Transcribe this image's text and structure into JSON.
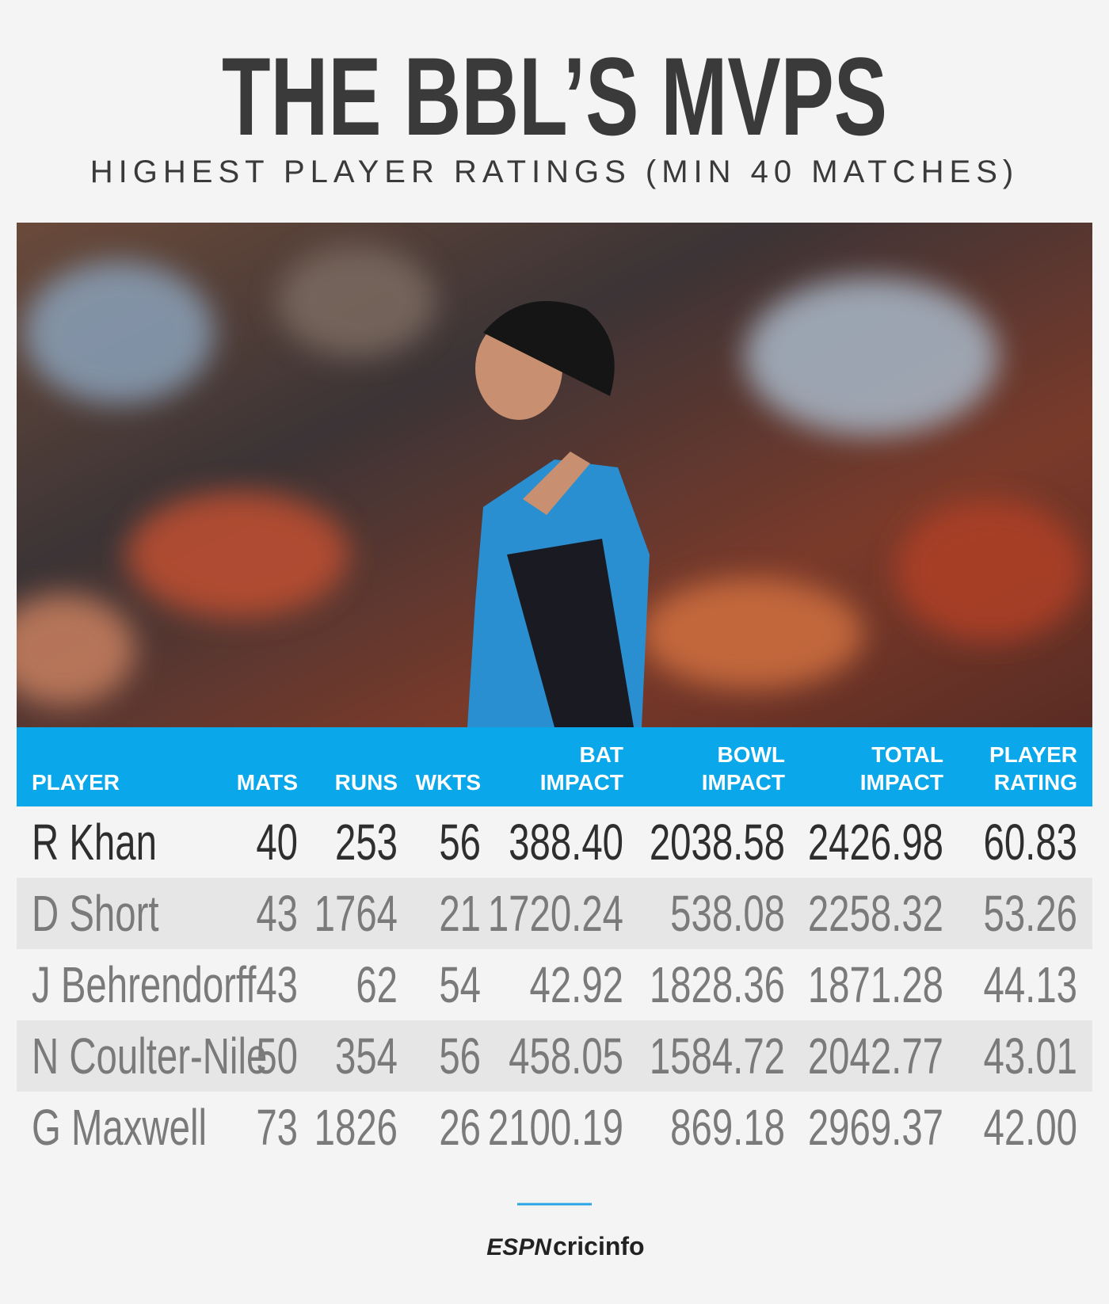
{
  "header": {
    "title": "THE BBL’S MVPS",
    "subtitle": "HIGHEST PLAYER RATINGS (MIN 40 MATCHES)"
  },
  "table": {
    "columns": [
      [
        "PLAYER"
      ],
      [
        "MATS"
      ],
      [
        "RUNS"
      ],
      [
        "WKTS"
      ],
      [
        "BAT",
        "IMPACT"
      ],
      [
        "BOWL",
        "IMPACT"
      ],
      [
        "TOTAL",
        "IMPACT"
      ],
      [
        "PLAYER",
        "RATING"
      ]
    ],
    "rows": [
      [
        "R Khan",
        "40",
        "253",
        "56",
        "388.40",
        "2038.58",
        "2426.98",
        "60.83"
      ],
      [
        "D Short",
        "43",
        "1764",
        "21",
        "1720.24",
        "538.08",
        "2258.32",
        "53.26"
      ],
      [
        "J Behrendorff",
        "43",
        "62",
        "54",
        "42.92",
        "1828.36",
        "1871.28",
        "44.13"
      ],
      [
        "N Coulter-Nile",
        "50",
        "354",
        "56",
        "458.05",
        "1584.72",
        "2042.77",
        "43.01"
      ],
      [
        "G Maxwell",
        "73",
        "1826",
        "26",
        "2100.19",
        "869.18",
        "2969.37",
        "42.00"
      ]
    ]
  },
  "footer": {
    "brand": [
      "ESPN",
      "cricinfo"
    ]
  }
}
